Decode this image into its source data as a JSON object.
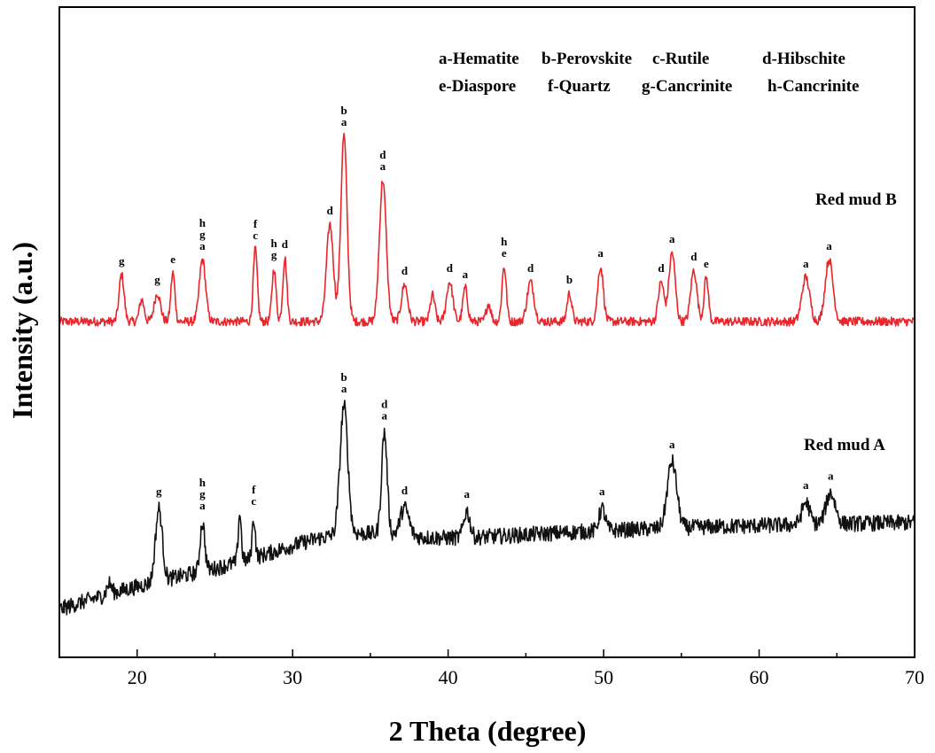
{
  "chart_data": {
    "type": "line",
    "xlabel": "2 Theta (degree)",
    "ylabel": "Intensity (a.u.)",
    "xlim": [
      15,
      70
    ],
    "x_ticks": [
      20,
      30,
      40,
      50,
      60,
      70
    ],
    "y_ticks_shown": false,
    "phase_legend": [
      [
        "a-Hematite",
        "b-Perovskite",
        "c-Rutile",
        "d-Hibschite"
      ],
      [
        "e-Diaspore",
        "f-Quartz",
        "g-Cancrinite",
        "h-Cancrinite"
      ]
    ],
    "colors": {
      "Red mud B": "#e8262b",
      "Red mud A": "#111111",
      "axis": "#000000"
    },
    "series": [
      {
        "name": "Red mud B",
        "color": "#e8262b",
        "baseline": 15,
        "noise": 5,
        "peaks": [
          {
            "x": 19.0,
            "h": 53,
            "w": 0.16,
            "label": [
              "g"
            ]
          },
          {
            "x": 20.3,
            "h": 25,
            "w": 0.15,
            "label": []
          },
          {
            "x": 21.3,
            "h": 32,
            "w": 0.2,
            "label": [
              "g"
            ]
          },
          {
            "x": 22.3,
            "h": 55,
            "w": 0.13,
            "label": [
              "e"
            ]
          },
          {
            "x": 24.2,
            "h": 70,
            "w": 0.2,
            "label": [
              "h",
              "g",
              "a"
            ]
          },
          {
            "x": 27.6,
            "h": 82,
            "w": 0.13,
            "label": [
              "f",
              "c"
            ]
          },
          {
            "x": 28.8,
            "h": 60,
            "w": 0.13,
            "label": [
              "h",
              "g"
            ]
          },
          {
            "x": 29.5,
            "h": 72,
            "w": 0.13,
            "label": [
              "d"
            ]
          },
          {
            "x": 32.4,
            "h": 110,
            "w": 0.22,
            "label": [
              "d"
            ]
          },
          {
            "x": 33.3,
            "h": 210,
            "w": 0.2,
            "label": [
              "b",
              "a"
            ]
          },
          {
            "x": 35.8,
            "h": 160,
            "w": 0.22,
            "label": [
              "d",
              "a"
            ]
          },
          {
            "x": 37.2,
            "h": 42,
            "w": 0.2,
            "label": [
              "d"
            ]
          },
          {
            "x": 39.0,
            "h": 30,
            "w": 0.15,
            "label": []
          },
          {
            "x": 40.1,
            "h": 45,
            "w": 0.2,
            "label": [
              "d"
            ]
          },
          {
            "x": 41.1,
            "h": 38,
            "w": 0.15,
            "label": [
              "a"
            ]
          },
          {
            "x": 42.6,
            "h": 20,
            "w": 0.15,
            "label": []
          },
          {
            "x": 43.6,
            "h": 62,
            "w": 0.14,
            "label": [
              "h",
              "e"
            ]
          },
          {
            "x": 45.3,
            "h": 45,
            "w": 0.22,
            "label": [
              "d"
            ]
          },
          {
            "x": 47.8,
            "h": 32,
            "w": 0.15,
            "label": [
              "b"
            ]
          },
          {
            "x": 49.8,
            "h": 62,
            "w": 0.18,
            "label": [
              "a"
            ]
          },
          {
            "x": 53.7,
            "h": 45,
            "w": 0.18,
            "label": [
              "d"
            ]
          },
          {
            "x": 54.4,
            "h": 78,
            "w": 0.2,
            "label": [
              "a"
            ]
          },
          {
            "x": 55.8,
            "h": 58,
            "w": 0.2,
            "label": [
              "d"
            ]
          },
          {
            "x": 56.6,
            "h": 50,
            "w": 0.14,
            "label": [
              "e"
            ]
          },
          {
            "x": 63.0,
            "h": 50,
            "w": 0.25,
            "label": [
              "a"
            ]
          },
          {
            "x": 64.5,
            "h": 70,
            "w": 0.25,
            "label": [
              "a"
            ]
          }
        ]
      },
      {
        "name": "Red mud A",
        "color": "#111111",
        "baseline_start": 12,
        "baseline_end": 110,
        "noise": 9,
        "peaks": [
          {
            "x": 18.2,
            "h": 12,
            "w": 0.15,
            "label": []
          },
          {
            "x": 21.4,
            "h": 82,
            "w": 0.22,
            "label": [
              "g"
            ]
          },
          {
            "x": 24.2,
            "h": 55,
            "w": 0.15,
            "label": [
              "h",
              "g",
              "a"
            ]
          },
          {
            "x": 26.6,
            "h": 55,
            "w": 0.1,
            "label": []
          },
          {
            "x": 27.5,
            "h": 45,
            "w": 0.1,
            "label": [
              "f",
              "c"
            ]
          },
          {
            "x": 33.3,
            "h": 145,
            "w": 0.25,
            "label": [
              "b",
              "a"
            ]
          },
          {
            "x": 35.9,
            "h": 115,
            "w": 0.18,
            "label": [
              "d",
              "a"
            ]
          },
          {
            "x": 37.2,
            "h": 32,
            "w": 0.28,
            "label": [
              "d"
            ]
          },
          {
            "x": 41.2,
            "h": 30,
            "w": 0.2,
            "label": [
              "a"
            ]
          },
          {
            "x": 49.9,
            "h": 25,
            "w": 0.2,
            "label": [
              "a"
            ]
          },
          {
            "x": 54.4,
            "h": 75,
            "w": 0.3,
            "label": [
              "a"
            ]
          },
          {
            "x": 63.0,
            "h": 25,
            "w": 0.25,
            "label": [
              "a"
            ]
          },
          {
            "x": 64.6,
            "h": 35,
            "w": 0.3,
            "label": [
              "a"
            ]
          }
        ]
      }
    ]
  }
}
